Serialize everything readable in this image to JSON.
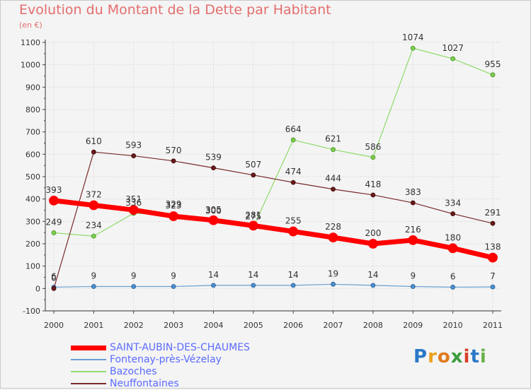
{
  "chart_data": {
    "type": "line",
    "title": "Evolution du Montant de la Dette par Habitant",
    "unit": "(en €)",
    "x": [
      "2000",
      "2001",
      "2002",
      "2003",
      "2004",
      "2005",
      "2006",
      "2007",
      "2008",
      "2009",
      "2010",
      "2011"
    ],
    "ylim": [
      -100,
      1100
    ],
    "yticks": [
      -100,
      0,
      100,
      200,
      300,
      400,
      500,
      600,
      700,
      800,
      900,
      1000,
      1100
    ],
    "grid": true,
    "legend_position": "bottom-left",
    "series": [
      {
        "name": "SAINT-AUBIN-DES-CHAUMES",
        "color": "#ff0000",
        "values": [
          393,
          372,
          351,
          323,
          305,
          281,
          255,
          228,
          200,
          216,
          180,
          138
        ]
      },
      {
        "name": "Fontenay-près-Vézelay",
        "color": "#6aa0cf",
        "values": [
          6,
          9,
          9,
          9,
          14,
          14,
          14,
          19,
          14,
          9,
          6,
          7
        ]
      },
      {
        "name": "Bazoches",
        "color": "#8fdb6a",
        "values": [
          249,
          234,
          336,
          329,
          300,
          275,
          664,
          621,
          586,
          1074,
          1027,
          955
        ]
      },
      {
        "name": "Neuffontaines",
        "color": "#7a2a2a",
        "values": [
          0,
          610,
          593,
          570,
          539,
          507,
          474,
          444,
          418,
          383,
          334,
          291
        ]
      }
    ]
  },
  "logo_text": "Proxiti"
}
